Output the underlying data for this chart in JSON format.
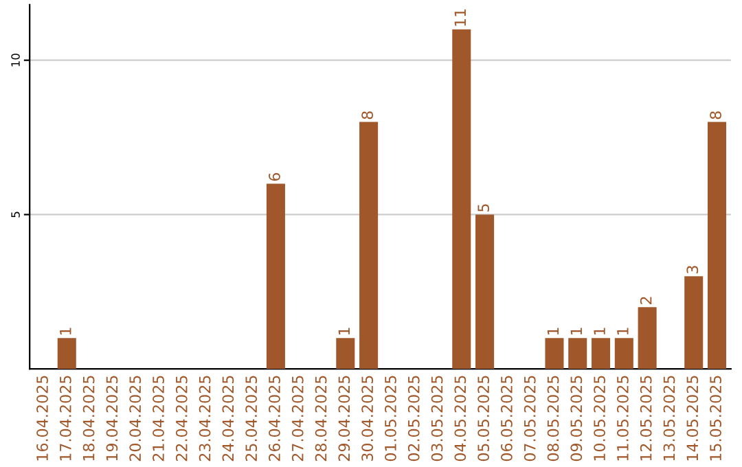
{
  "chart_data": {
    "type": "bar",
    "categories": [
      "16.04.2025",
      "17.04.2025",
      "18.04.2025",
      "19.04.2025",
      "20.04.2025",
      "21.04.2025",
      "22.04.2025",
      "23.04.2025",
      "24.04.2025",
      "25.04.2025",
      "26.04.2025",
      "27.04.2025",
      "28.04.2025",
      "29.04.2025",
      "30.04.2025",
      "01.05.2025",
      "02.05.2025",
      "03.05.2025",
      "04.05.2025",
      "05.05.2025",
      "06.05.2025",
      "07.05.2025",
      "08.05.2025",
      "09.05.2025",
      "10.05.2025",
      "11.05.2025",
      "12.05.2025",
      "13.05.2025",
      "14.05.2025",
      "15.05.2025"
    ],
    "values": [
      0,
      1,
      0,
      0,
      0,
      0,
      0,
      0,
      0,
      0,
      6,
      0,
      0,
      1,
      8,
      0,
      0,
      0,
      11,
      5,
      0,
      0,
      1,
      1,
      1,
      1,
      2,
      0,
      3,
      8
    ],
    "value_labels": [
      null,
      "1",
      null,
      null,
      null,
      null,
      null,
      null,
      null,
      null,
      "6",
      null,
      null,
      "1",
      "8",
      null,
      null,
      null,
      "11",
      "5",
      null,
      null,
      "1",
      "1",
      "1",
      "1",
      "2",
      null,
      "3",
      "8"
    ],
    "color": "#a0582a",
    "ylim": [
      0,
      11.8
    ],
    "yticks": [
      5,
      10
    ],
    "grid": "y"
  }
}
